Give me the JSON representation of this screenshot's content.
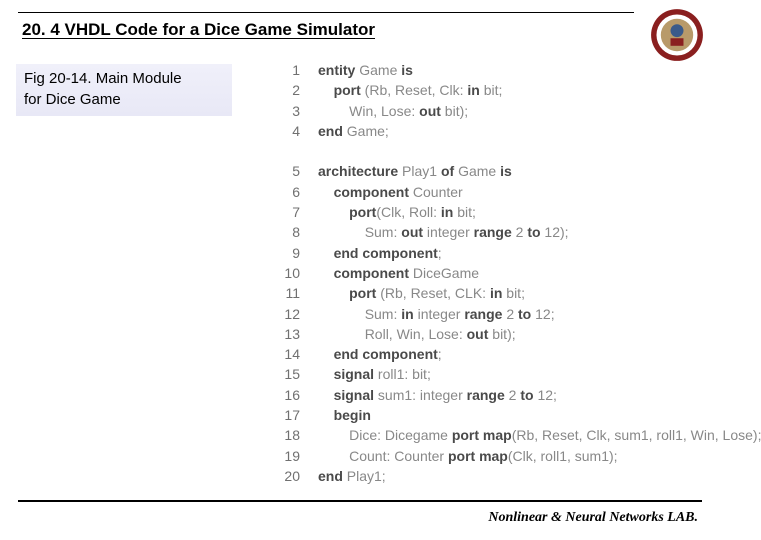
{
  "title": "20. 4 VHDL Code for a Dice Game Simulator",
  "caption_line1": "Fig 20-14. Main Module",
  "caption_line2": "for Dice Game",
  "footer": "Nonlinear & Neural Networks LAB.",
  "logo": {
    "ring_outer": "#8a1f1f",
    "ring_inner": "#ffffff",
    "center": "#b08a4a",
    "accent": "#3a5a8a"
  },
  "code": {
    "indent_unit": "    ",
    "lines": [
      {
        "n": 1,
        "indent": 0,
        "segs": [
          [
            "dk",
            "entity"
          ],
          [
            "txt",
            " Game "
          ],
          [
            "dk",
            "is"
          ]
        ]
      },
      {
        "n": 2,
        "indent": 1,
        "segs": [
          [
            "dk",
            "port"
          ],
          [
            "txt",
            " (Rb, Reset, Clk: "
          ],
          [
            "dk",
            "in"
          ],
          [
            "txt",
            " bit;"
          ]
        ]
      },
      {
        "n": 3,
        "indent": 2,
        "segs": [
          [
            "txt",
            "Win, Lose: "
          ],
          [
            "dk",
            "out"
          ],
          [
            "txt",
            " bit);"
          ]
        ]
      },
      {
        "n": 4,
        "indent": 0,
        "segs": [
          [
            "dk",
            "end"
          ],
          [
            "txt",
            " Game;"
          ]
        ]
      },
      {
        "n": 5,
        "indent": 0,
        "segs": [
          [
            "dk",
            "architecture"
          ],
          [
            "txt",
            " Play1 "
          ],
          [
            "dk",
            "of"
          ],
          [
            "txt",
            " Game "
          ],
          [
            "dk",
            "is"
          ]
        ]
      },
      {
        "n": 6,
        "indent": 1,
        "segs": [
          [
            "dk",
            "component"
          ],
          [
            "txt",
            " Counter"
          ]
        ]
      },
      {
        "n": 7,
        "indent": 2,
        "segs": [
          [
            "dk",
            "port"
          ],
          [
            "txt",
            "(Clk, Roll: "
          ],
          [
            "dk",
            "in"
          ],
          [
            "txt",
            " bit;"
          ]
        ]
      },
      {
        "n": 8,
        "indent": 3,
        "segs": [
          [
            "txt",
            "Sum: "
          ],
          [
            "dk",
            "out"
          ],
          [
            "txt",
            " integer "
          ],
          [
            "dk",
            "range"
          ],
          [
            "txt",
            " 2 "
          ],
          [
            "dk",
            "to"
          ],
          [
            "txt",
            " 12);"
          ]
        ]
      },
      {
        "n": 9,
        "indent": 1,
        "segs": [
          [
            "dk",
            "end component"
          ],
          [
            "txt",
            ";"
          ]
        ]
      },
      {
        "n": 10,
        "indent": 1,
        "segs": [
          [
            "dk",
            "component"
          ],
          [
            "txt",
            " DiceGame"
          ]
        ]
      },
      {
        "n": 11,
        "indent": 2,
        "segs": [
          [
            "dk",
            "port"
          ],
          [
            "txt",
            " (Rb, Reset, CLK: "
          ],
          [
            "dk",
            "in"
          ],
          [
            "txt",
            " bit;"
          ]
        ]
      },
      {
        "n": 12,
        "indent": 3,
        "segs": [
          [
            "txt",
            "Sum: "
          ],
          [
            "dk",
            "in"
          ],
          [
            "txt",
            " integer "
          ],
          [
            "dk",
            "range"
          ],
          [
            "txt",
            " 2 "
          ],
          [
            "dk",
            "to"
          ],
          [
            "txt",
            " 12;"
          ]
        ]
      },
      {
        "n": 13,
        "indent": 3,
        "segs": [
          [
            "txt",
            "Roll, Win, Lose: "
          ],
          [
            "dk",
            "out"
          ],
          [
            "txt",
            " bit);"
          ]
        ]
      },
      {
        "n": 14,
        "indent": 1,
        "segs": [
          [
            "dk",
            "end component"
          ],
          [
            "txt",
            ";"
          ]
        ]
      },
      {
        "n": 15,
        "indent": 1,
        "segs": [
          [
            "dk",
            "signal"
          ],
          [
            "txt",
            " roll1: bit;"
          ]
        ]
      },
      {
        "n": 16,
        "indent": 1,
        "segs": [
          [
            "dk",
            "signal"
          ],
          [
            "txt",
            " sum1: integer "
          ],
          [
            "dk",
            "range"
          ],
          [
            "txt",
            " 2 "
          ],
          [
            "dk",
            "to"
          ],
          [
            "txt",
            " 12;"
          ]
        ]
      },
      {
        "n": 17,
        "indent": 1,
        "segs": [
          [
            "dk",
            "begin"
          ]
        ]
      },
      {
        "n": 18,
        "indent": 2,
        "segs": [
          [
            "txt",
            "Dice: Dicegame "
          ],
          [
            "dk",
            "port map"
          ],
          [
            "txt",
            "(Rb, Reset, Clk, sum1, roll1, Win, Lose);"
          ]
        ]
      },
      {
        "n": 19,
        "indent": 2,
        "segs": [
          [
            "txt",
            "Count: Counter "
          ],
          [
            "dk",
            "port map"
          ],
          [
            "txt",
            "(Clk, roll1, sum1);"
          ]
        ]
      },
      {
        "n": 20,
        "indent": 0,
        "segs": [
          [
            "dk",
            "end"
          ],
          [
            "txt",
            " Play1;"
          ]
        ]
      }
    ],
    "blank_after": [
      4
    ]
  }
}
